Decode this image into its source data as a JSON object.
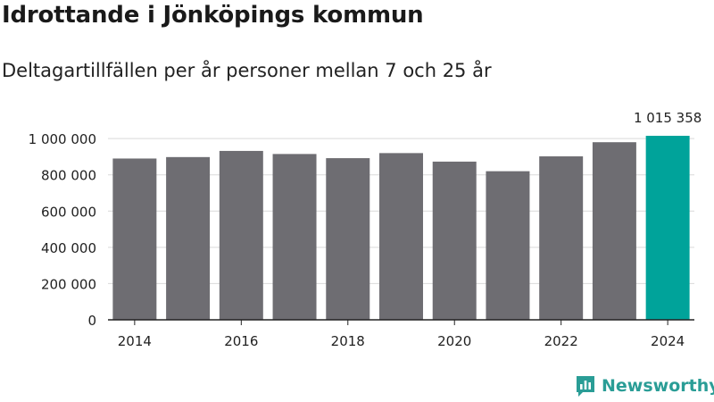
{
  "title": "Idrottande i Jönköpings kommun",
  "subtitle": "Deltagartillfällen per år personer mellan 7 och 25 år",
  "brand": {
    "name": "Newsworthy"
  },
  "colors": {
    "bar": "#6e6d72",
    "highlight": "#00a39a",
    "grid": "#d9d9d9",
    "axis": "#222222",
    "brand": "#2a9d96"
  },
  "chart_data": {
    "type": "bar",
    "categories": [
      "2014",
      "2015",
      "2016",
      "2017",
      "2018",
      "2019",
      "2020",
      "2021",
      "2022",
      "2023",
      "2024"
    ],
    "values": [
      890000,
      898000,
      932000,
      915000,
      892000,
      920000,
      873000,
      820000,
      902000,
      980000,
      1015358
    ],
    "ylim": [
      0,
      1050000
    ],
    "y_ticks": [
      0,
      200000,
      400000,
      600000,
      800000,
      1000000
    ],
    "y_tick_labels": [
      "0",
      "200 000",
      "400 000",
      "600 000",
      "800 000",
      "1 000 000"
    ],
    "x_tick_labels": [
      "2014",
      "2016",
      "2018",
      "2020",
      "2022",
      "2024"
    ],
    "highlight_index": 10,
    "data_labels": [
      {
        "index": 10,
        "text": "1 015 358"
      }
    ],
    "grid": true,
    "xlabel": "",
    "ylabel": ""
  }
}
